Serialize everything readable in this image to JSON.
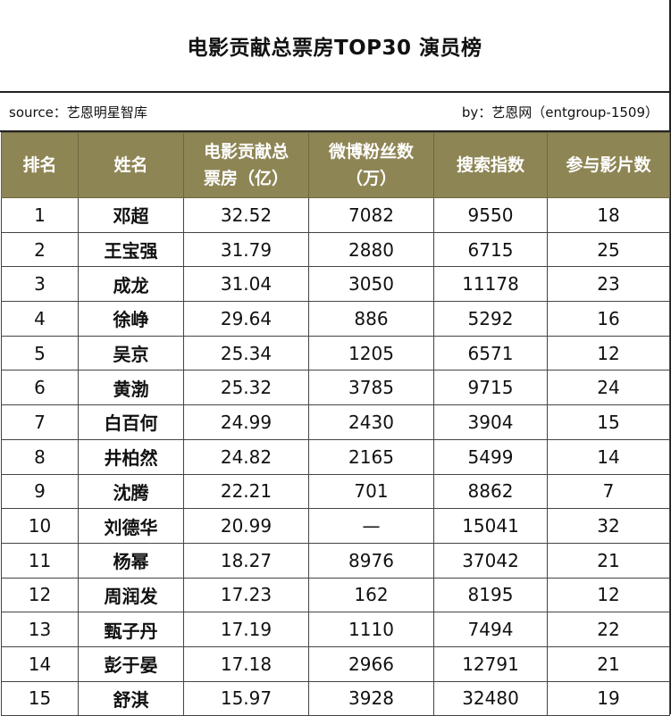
{
  "title": "电影贡献总票房TOP30 演员榜",
  "source": "source：艺恩明星智库",
  "by": "by：艺恩网（entgroup-1509）",
  "headers": {
    "rank": "排名",
    "name": "姓名",
    "box_office": "电影贡献总票房（亿）",
    "box_office_line1": "电影贡献总",
    "box_office_line2": "票房（亿）",
    "weibo": "微博粉丝数（万）",
    "weibo_line1": "微博粉丝数",
    "weibo_line2": "（万）",
    "search": "搜索指数",
    "films": "参与影片数"
  },
  "rows": [
    {
      "rank": "1",
      "name": "邓超",
      "box_office": "32.52",
      "weibo": "7082",
      "search": "9550",
      "films": "18"
    },
    {
      "rank": "2",
      "name": "王宝强",
      "box_office": "31.79",
      "weibo": "2880",
      "search": "6715",
      "films": "25"
    },
    {
      "rank": "3",
      "name": "成龙",
      "box_office": "31.04",
      "weibo": "3050",
      "search": "11178",
      "films": "23"
    },
    {
      "rank": "4",
      "name": "徐峥",
      "box_office": "29.64",
      "weibo": "886",
      "search": "5292",
      "films": "16"
    },
    {
      "rank": "5",
      "name": "吴京",
      "box_office": "25.34",
      "weibo": "1205",
      "search": "6571",
      "films": "12"
    },
    {
      "rank": "6",
      "name": "黄渤",
      "box_office": "25.32",
      "weibo": "3785",
      "search": "9715",
      "films": "24"
    },
    {
      "rank": "7",
      "name": "白百何",
      "box_office": "24.99",
      "weibo": "2430",
      "search": "3904",
      "films": "15"
    },
    {
      "rank": "8",
      "name": "井柏然",
      "box_office": "24.82",
      "weibo": "2165",
      "search": "5499",
      "films": "14"
    },
    {
      "rank": "9",
      "name": "沈腾",
      "box_office": "22.21",
      "weibo": "701",
      "search": "8862",
      "films": "7"
    },
    {
      "rank": "10",
      "name": "刘德华",
      "box_office": "20.99",
      "weibo": "—",
      "search": "15041",
      "films": "32"
    },
    {
      "rank": "11",
      "name": "杨幂",
      "box_office": "18.27",
      "weibo": "8976",
      "search": "37042",
      "films": "21"
    },
    {
      "rank": "12",
      "name": "周润发",
      "box_office": "17.23",
      "weibo": "162",
      "search": "8195",
      "films": "12"
    },
    {
      "rank": "13",
      "name": "甄子丹",
      "box_office": "17.19",
      "weibo": "1110",
      "search": "7494",
      "films": "22"
    },
    {
      "rank": "14",
      "name": "彭于晏",
      "box_office": "17.18",
      "weibo": "2966",
      "search": "12791",
      "films": "21"
    },
    {
      "rank": "15",
      "name": "舒淇",
      "box_office": "15.97",
      "weibo": "3928",
      "search": "32480",
      "films": "19"
    }
  ]
}
